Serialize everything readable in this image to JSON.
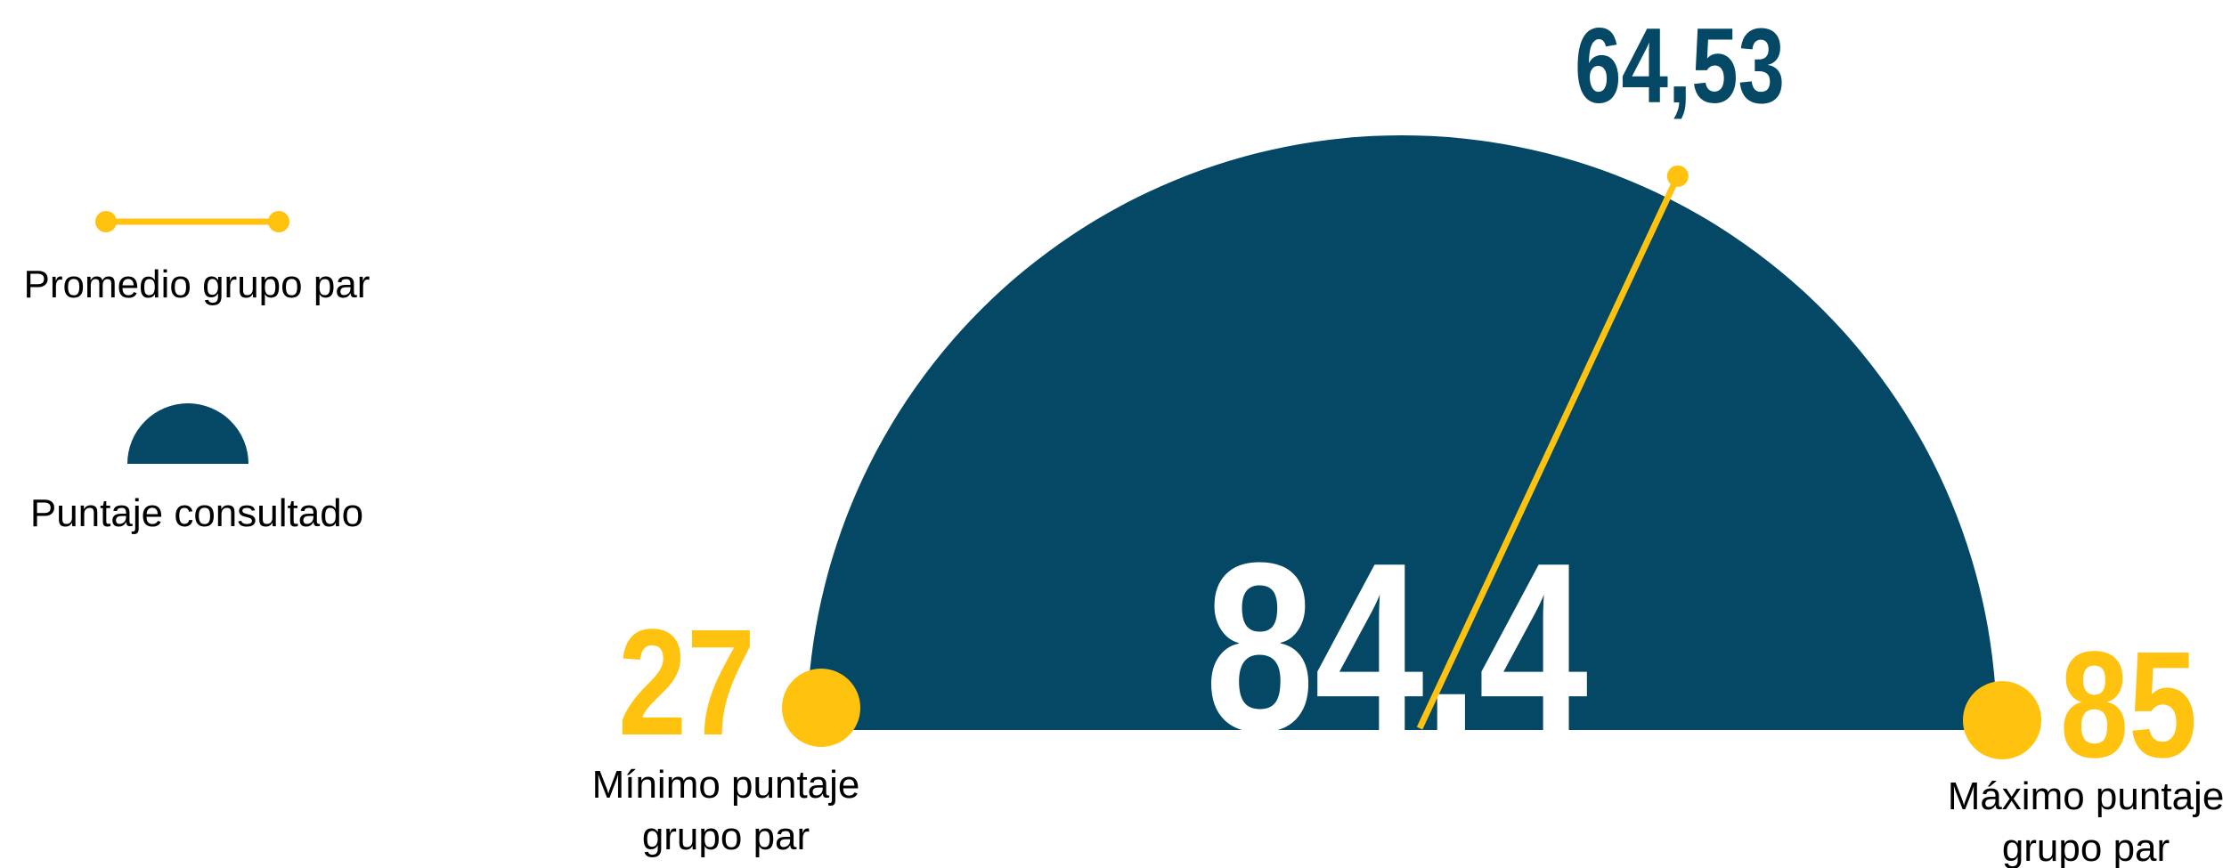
{
  "colors": {
    "score": "#044866",
    "accent": "#FFC20E",
    "value_text": "#FFFFFF",
    "avg_text": "#044866"
  },
  "legend": {
    "average_label": "Promedio grupo par",
    "score_label": "Puntaje consultado"
  },
  "chart_data": {
    "type": "gauge",
    "min": 27,
    "max": 85,
    "value": 84.4,
    "average": 64.53,
    "min_text": "27",
    "max_text": "85",
    "value_text": "84.4",
    "average_text": "64,53",
    "min_label_line1": "Mínimo puntaje",
    "min_label_line2": "grupo par",
    "max_label_line1": "Máximo puntaje",
    "max_label_line2": "grupo par"
  }
}
